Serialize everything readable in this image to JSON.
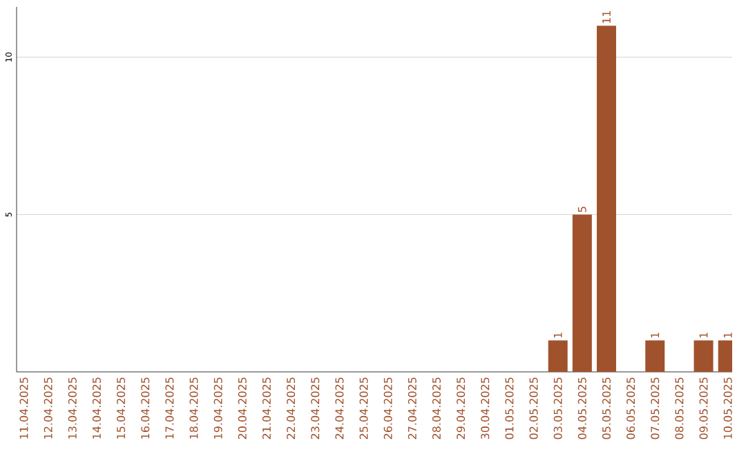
{
  "chart_data": {
    "type": "bar",
    "categories": [
      "11.04.2025",
      "12.04.2025",
      "13.04.2025",
      "14.04.2025",
      "15.04.2025",
      "16.04.2025",
      "17.04.2025",
      "18.04.2025",
      "19.04.2025",
      "20.04.2025",
      "21.04.2025",
      "22.04.2025",
      "23.04.2025",
      "24.04.2025",
      "25.04.2025",
      "26.04.2025",
      "27.04.2025",
      "28.04.2025",
      "29.04.2025",
      "30.04.2025",
      "01.05.2025",
      "02.05.2025",
      "03.05.2025",
      "04.05.2025",
      "05.05.2025",
      "06.05.2025",
      "07.05.2025",
      "08.05.2025",
      "09.05.2025",
      "10.05.2025"
    ],
    "values": [
      0,
      0,
      0,
      0,
      0,
      0,
      0,
      0,
      0,
      0,
      0,
      0,
      0,
      0,
      0,
      0,
      0,
      0,
      0,
      0,
      0,
      0,
      1,
      5,
      11,
      0,
      1,
      0,
      1,
      1
    ],
    "value_labels": [
      null,
      null,
      null,
      null,
      null,
      null,
      null,
      null,
      null,
      null,
      null,
      null,
      null,
      null,
      null,
      null,
      null,
      null,
      null,
      null,
      null,
      null,
      "1",
      "5",
      "11",
      null,
      "1",
      null,
      "1",
      "1"
    ],
    "color": "#a0522d",
    "ylim": [
      0,
      11.6
    ],
    "yticks": [
      5,
      10
    ],
    "grid": "y"
  }
}
